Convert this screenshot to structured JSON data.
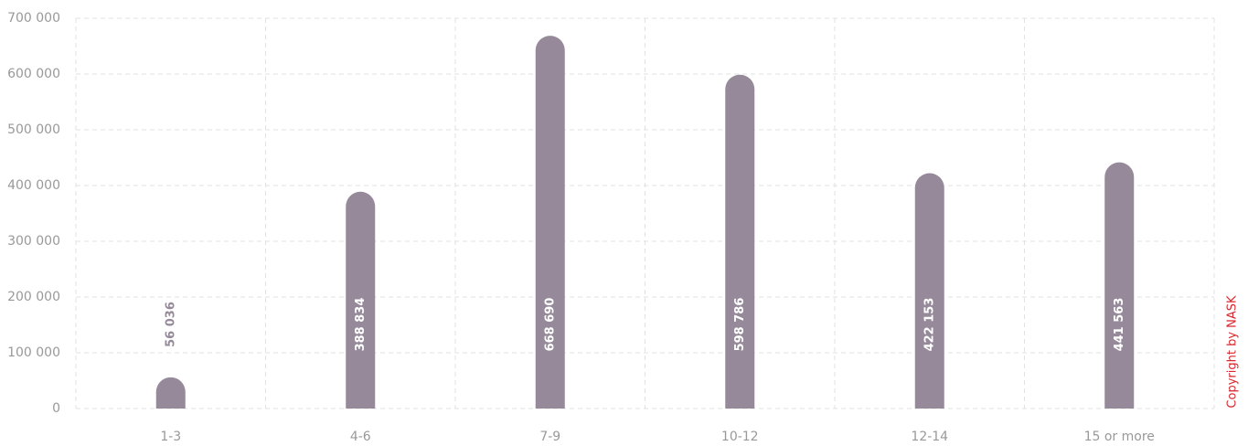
{
  "chart_data": {
    "type": "bar",
    "categories": [
      "1-3",
      "4-6",
      "7-9",
      "10-12",
      "12-14",
      "15 or more"
    ],
    "values": [
      56036,
      388834,
      668690,
      598786,
      422153,
      441563
    ],
    "value_labels": [
      "56 036",
      "388 834",
      "668 690",
      "598 786",
      "422 153",
      "441 563"
    ],
    "color": "#968a9a",
    "ylim": [
      0,
      700000
    ],
    "yticks": [
      0,
      {
        "value": 100000,
        "label": "100 000"
      },
      {
        "value": 200000,
        "label": "200 000"
      },
      {
        "value": 300000,
        "label": "300 000"
      },
      {
        "value": 400000,
        "label": "400 000"
      },
      {
        "value": 500000,
        "label": "500 000"
      },
      {
        "value": 600000,
        "label": "600 000"
      },
      {
        "value": 700000,
        "label": "700 000"
      }
    ],
    "grid": true,
    "annotation": "Copyright by NASK"
  }
}
